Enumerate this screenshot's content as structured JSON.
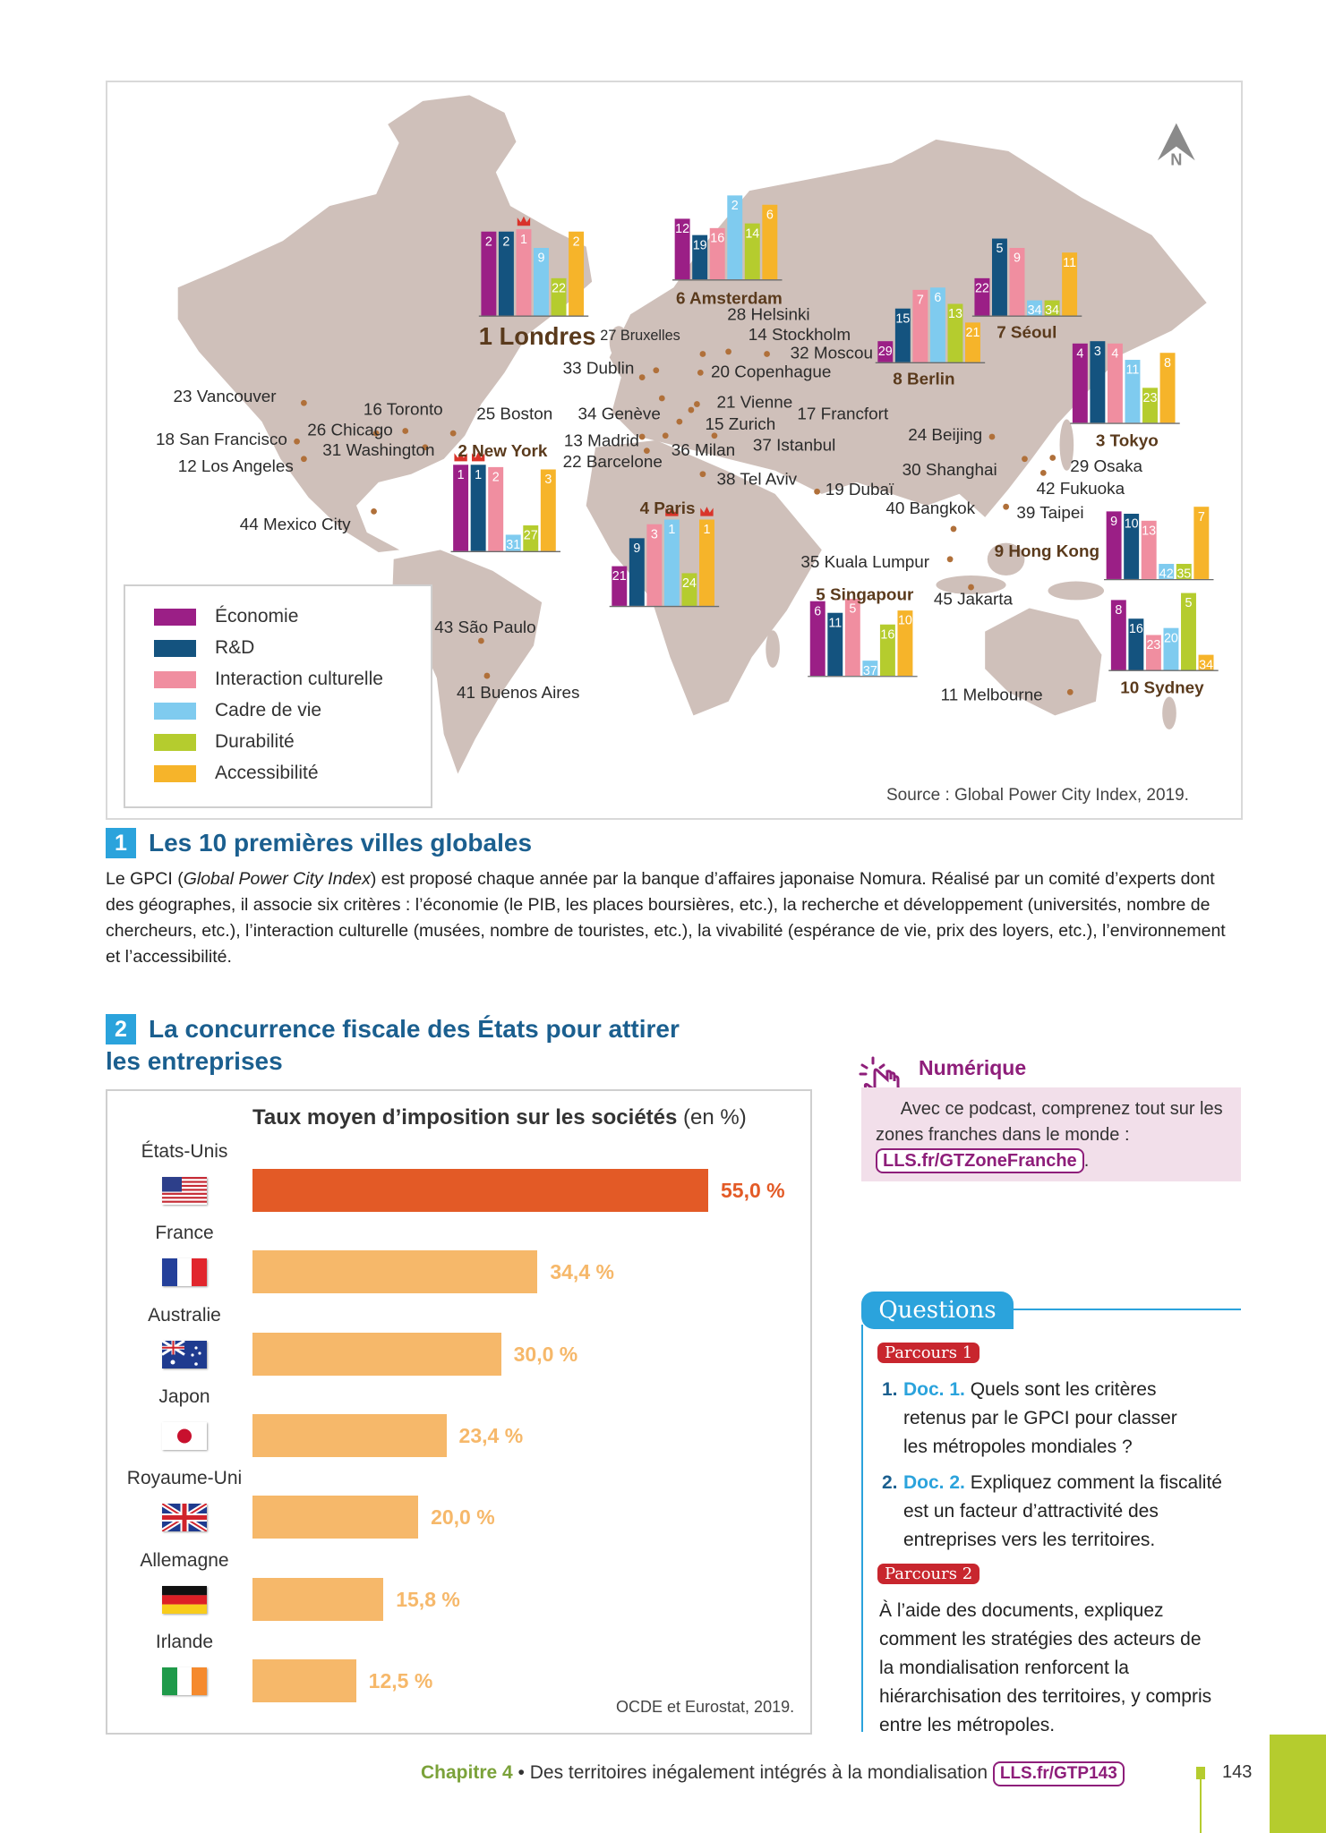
{
  "map": {
    "north_label": "N",
    "source": "Source : Global Power City Index, 2019.",
    "legend": [
      {
        "label": "Économie",
        "color": "#9b1f86"
      },
      {
        "label": "R&D",
        "color": "#14537f"
      },
      {
        "label": "Interaction culturelle",
        "color": "#f08ea0"
      },
      {
        "label": "Cadre de vie",
        "color": "#7fcbef"
      },
      {
        "label": "Durabilité",
        "color": "#b5cc2e"
      },
      {
        "label": "Accessibilité",
        "color": "#f6b42a"
      }
    ],
    "top_cities": [
      {
        "label": "1 Londres",
        "ranks": [
          2,
          2,
          1,
          9,
          22,
          2
        ]
      },
      {
        "label": "2 New York",
        "ranks": [
          1,
          1,
          2,
          31,
          27,
          3
        ]
      },
      {
        "label": "3 Tokyo",
        "ranks": [
          4,
          3,
          4,
          11,
          23,
          8
        ]
      },
      {
        "label": "4 Paris",
        "ranks": [
          21,
          9,
          3,
          1,
          24,
          1
        ]
      },
      {
        "label": "5 Singapour",
        "ranks": [
          6,
          11,
          5,
          37,
          16,
          10
        ]
      },
      {
        "label": "6 Amsterdam",
        "ranks": [
          12,
          19,
          16,
          2,
          14,
          6
        ]
      },
      {
        "label": "7 Séoul",
        "ranks": [
          22,
          5,
          9,
          34,
          34,
          11
        ]
      },
      {
        "label": "8 Berlin",
        "ranks": [
          29,
          15,
          7,
          6,
          13,
          21
        ]
      },
      {
        "label": "9 Hong Kong",
        "ranks": [
          9,
          10,
          13,
          42,
          35,
          7
        ]
      },
      {
        "label": "10 Sydney",
        "ranks": [
          8,
          16,
          23,
          20,
          5,
          34
        ]
      }
    ],
    "other_cities": [
      "23 Vancouver",
      "16 Toronto",
      "25 Boston",
      "26 Chicago",
      "31 Washington",
      "18 San Francisco",
      "12 Los Angeles",
      "44 Mexico City",
      "43 São Paulo",
      "41 Buenos Aires",
      "27 Bruxelles",
      "28 Helsinki",
      "14 Stockholm",
      "32 Moscou",
      "20 Copenhague",
      "33 Dublin",
      "21 Vienne",
      "34 Genève",
      "17 Francfort",
      "15 Zurich",
      "13 Madrid",
      "36 Milan",
      "37 Istanbul",
      "22 Barcelone",
      "38 Tel Aviv",
      "19 Dubaï",
      "24 Beijing",
      "30 Shanghai",
      "29 Osaka",
      "42 Fukuoka",
      "40 Bangkok",
      "39 Taipei",
      "35 Kuala Lumpur",
      "45 Jakarta",
      "11 Melbourne"
    ]
  },
  "doc1": {
    "number": "1",
    "title": "Les 10 premières villes globales",
    "para_before": "Le GPCI (",
    "para_italic": "Global Power City Index",
    "para_after": ") est proposé chaque année par la banque d’affaires japonaise Nomura. Réalisé par un comité d’experts dont des géographes, il associe six critères : l’économie (le PIB, les places boursières, etc.), la recherche et développement (universités, nombre de chercheurs, etc.), l’interaction culturelle (musées, nombre de touristes, etc.), la vivabilité (espérance de vie, prix des loyers, etc.), l’environnement et l’accessibilité."
  },
  "doc2": {
    "number": "2",
    "title_line1": "La concurrence fiscale des États pour attirer",
    "title_line2": "les entreprises",
    "source": "OCDE et Eurostat, 2019."
  },
  "chart_data": {
    "type": "bar",
    "orientation": "horizontal",
    "title": "Taux moyen d’imposition sur les sociétés",
    "title_unit": "(en %)",
    "categories": [
      "États-Unis",
      "France",
      "Australie",
      "Japon",
      "Royaume-Uni",
      "Allemagne",
      "Irlande"
    ],
    "values": [
      55.0,
      34.4,
      30.0,
      23.4,
      20.0,
      15.8,
      12.5
    ],
    "value_labels": [
      "55,0 %",
      "34,4 %",
      "30,0 %",
      "23,4 %",
      "20,0 %",
      "15,8 %",
      "12,5 %"
    ],
    "flags": [
      "us-flag",
      "france-flag",
      "australia-flag",
      "japan-flag",
      "uk-flag",
      "germany-flag",
      "ireland-flag"
    ],
    "colors": {
      "highlight": "#e35a26",
      "default": "#f6b86a"
    },
    "grid": false
  },
  "numerique": {
    "title": "Numérique",
    "text": "Avec ce podcast, comprenez tout sur les zones franches dans le monde :",
    "link": "LLS.fr/GTZoneFranche",
    "after": "."
  },
  "questions": {
    "title": "Questions",
    "parcours1": "Parcours 1",
    "q1_num": "1.",
    "q1_doc": "Doc. 1.",
    "q1_text": "Quels sont les critères retenus par le GPCI pour classer les métropoles mondiales ?",
    "q2_num": "2.",
    "q2_doc": "Doc. 2.",
    "q2_text": "Expliquez comment la fiscalité est un facteur d’attractivité des entreprises vers les territoires.",
    "parcours2": "Parcours 2",
    "p2_text": "À l’aide des documents, expliquez comment les stratégies des acteurs de la mondialisation renforcent la hiérarchisation des territoires, y compris entre les métropoles."
  },
  "footer": {
    "chapter": "Chapitre 4",
    "separator": " • ",
    "chapter_title": "Des territoires inégalement intégrés à la mondialisation",
    "link": "LLS.fr/GTP143",
    "page": "143"
  }
}
